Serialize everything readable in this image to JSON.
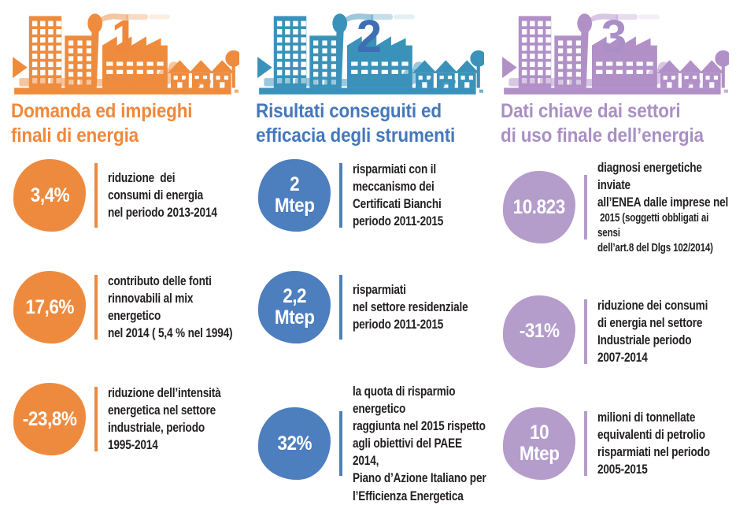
{
  "infographic": {
    "background": "#FFFFFF",
    "text_color": "#231F20",
    "columns": [
      {
        "number": "1",
        "title": "Domanda ed impieghi\nfinali di energia",
        "skyline_icon": "city-skyline-icon",
        "colors": {
          "accent": "#EE8A3E",
          "heading": "#F0883B",
          "number": "#F0883B",
          "sky": "#EF8B3D"
        },
        "stats": [
          {
            "value": "3,4%",
            "description": "riduzione  dei\nconsumi di energia\nnel periodo 2013-2014"
          },
          {
            "value": "17,6%",
            "description": "contributo delle fonti\nrinnovabili al mix energetico\nnel 2014 ( 5,4 % nel 1994)"
          },
          {
            "value": "-23,8%",
            "description": "riduzione dell’intensità\nenergetica nel settore\nindustriale, periodo\n1995-2014"
          }
        ]
      },
      {
        "number": "2",
        "title": "Risultati conseguiti ed\nefficacia degli strumenti",
        "skyline_icon": "city-skyline-icon",
        "colors": {
          "accent": "#4D7EBE",
          "heading": "#4478BC",
          "number": "#3E6FB4",
          "sky": "#3A92BA"
        },
        "stats": [
          {
            "value": "2\nMtep",
            "description": "risparmiati con il\nmeccanismo dei\nCertificati Bianchi\nperiodo 2011-2015"
          },
          {
            "value": "2,2\nMtep",
            "description": "risparmiati\nnel settore residenziale\nperiodo 2011-2015"
          },
          {
            "value": "32%",
            "description": "la quota di risparmio energetico\nraggiunta nel 2015 rispetto\nagli obiettivi del PAEE 2014,\nPiano d’Azione Italiano per\nl’Efficienza Energetica"
          }
        ]
      },
      {
        "number": "3",
        "title": "Dati chiave dai settori\ndi uso finale dell’energia",
        "skyline_icon": "city-skyline-icon",
        "colors": {
          "accent": "#B49CCB",
          "heading": "#A98FC6",
          "number": "#A98FC6",
          "sky": "#B190C7"
        },
        "stats": [
          {
            "value": "10.823",
            "description": "diagnosi energetiche inviate\nall’ENEA dalle imprese nel",
            "description_small": " 2015 (soggetti obbligati ai sensi\ndell’art.8 del Dlgs 102/2014)"
          },
          {
            "value": "-31%",
            "description": "riduzione dei consumi\ndi energia nel settore\nIndustriale periodo\n2007-2014"
          },
          {
            "value": "10\nMtep",
            "description": "milioni di tonnellate\nequivalenti di petrolio\nrisparmiati nel periodo\n2005-2015"
          }
        ]
      }
    ]
  },
  "chart_data": {
    "type": "table",
    "title": "Infografica efficienza energetica",
    "sections": [
      {
        "label": "Domanda ed impieghi finali di energia",
        "rows": [
          [
            "3,4%",
            "riduzione dei consumi di energia nel periodo 2013-2014"
          ],
          [
            "17,6%",
            "contributo delle fonti rinnovabili al mix energetico nel 2014 ( 5,4 % nel 1994)"
          ],
          [
            "-23,8%",
            "riduzione dell’intensità energetica nel settore industriale, periodo 1995-2014"
          ]
        ]
      },
      {
        "label": "Risultati conseguiti ed efficacia degli strumenti",
        "rows": [
          [
            "2 Mtep",
            "risparmiati con il meccanismo dei Certificati Bianchi periodo 2011-2015"
          ],
          [
            "2,2 Mtep",
            "risparmiati nel settore residenziale periodo 2011-2015"
          ],
          [
            "32%",
            "la quota di risparmio energetico raggiunta nel 2015 rispetto agli obiettivi del PAEE 2014, Piano d’Azione Italiano per l’Efficienza Energetica"
          ]
        ]
      },
      {
        "label": "Dati chiave dai settori di uso finale dell’energia",
        "rows": [
          [
            "10.823",
            "diagnosi energetiche inviate all’ENEA dalle imprese nel 2015 (soggetti obbligati ai sensi dell’art.8 del Dlgs 102/2014)"
          ],
          [
            "-31%",
            "riduzione dei consumi di energia nel settore Industriale periodo 2007-2014"
          ],
          [
            "10 Mtep",
            "milioni di tonnellate equivalenti di petrolio risparmiati nel periodo 2005-2015"
          ]
        ]
      }
    ]
  }
}
